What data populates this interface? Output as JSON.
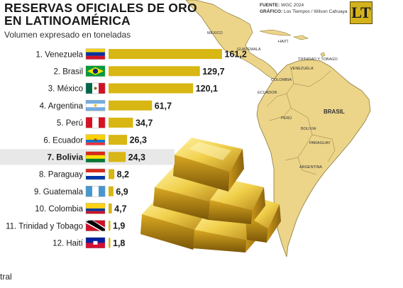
{
  "header": {
    "title_line1": "RESERVAS OFICIALES DE ORO",
    "title_line2": "EN LATINOAMÉRICA",
    "subtitle": "Volumen expresado en toneladas",
    "source_label": "FUENTE:",
    "source_value": "WGC 2024",
    "graphic_label": "GRÁFICO:",
    "graphic_value": "Los Tiempos / Wilson Cahuaya",
    "logo_text": "LT"
  },
  "map": {
    "labels": [
      "MÉXICO",
      "GUATEMALA",
      "HAITÍ",
      "TRINIDAD Y TOBAGO",
      "VENEZUELA",
      "COLOMBIA",
      "ECUADOR",
      "PERÚ",
      "BRASIL",
      "BOLIVIA",
      "PARAGUAY",
      "ARGENTINA"
    ]
  },
  "colors": {
    "bar": "#d8b613",
    "highlight_row": "#e8e8e8",
    "map_land": "#ecd489",
    "map_outline": "#8c7a3a"
  },
  "chart_data": {
    "type": "bar",
    "orientation": "horizontal",
    "title": "RESERVAS OFICIALES DE ORO EN LATINOAMÉRICA",
    "subtitle": "Volumen expresado en toneladas",
    "categories": [
      "1. Venezuela",
      "2. Brasil",
      "3. México",
      "4. Argentina",
      "5. Perú",
      "6. Ecuador",
      "7. Bolivia",
      "8. Paraguay",
      "9. Guatemala",
      "10. Colombia",
      "11. Trinidad y Tobago",
      "12. Haití"
    ],
    "values": [
      161.2,
      129.7,
      120.1,
      61.7,
      34.7,
      26.3,
      24.3,
      8.2,
      6.9,
      4.7,
      1.9,
      1.8
    ],
    "value_labels": [
      "161,2",
      "129,7",
      "120,1",
      "61,7",
      "34,7",
      "26,3",
      "24,3",
      "8,2",
      "6,9",
      "4,7",
      "1,9",
      "1,8"
    ],
    "flags": [
      "venezuela-flag-icon",
      "brazil-flag-icon",
      "mexico-flag-icon",
      "argentina-flag-icon",
      "peru-flag-icon",
      "ecuador-flag-icon",
      "bolivia-flag-icon",
      "paraguay-flag-icon",
      "guatemala-flag-icon",
      "colombia-flag-icon",
      "trinidad-and-tobago-flag-icon",
      "haiti-flag-icon"
    ],
    "highlighted": "7. Bolivia",
    "xlim": [
      0,
      161.2
    ],
    "grid": false
  },
  "footer": {
    "clipped_text": "tral"
  }
}
